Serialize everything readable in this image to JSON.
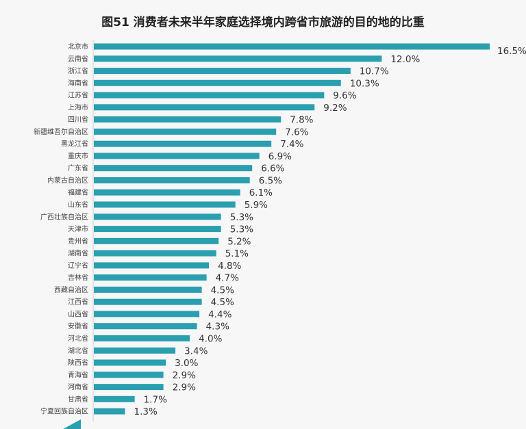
{
  "chart_data": {
    "type": "bar",
    "orientation": "horizontal",
    "title": "图51 消费者未来半年家庭选择境内跨省市旅游的目的地的比重",
    "bar_color": "#2a9fb0",
    "value_unit": "%",
    "categories": [
      "北京市",
      "云南省",
      "浙江省",
      "海南省",
      "江苏省",
      "上海市",
      "四川省",
      "新疆维吾尔自治区",
      "黑龙江省",
      "重庆市",
      "广东省",
      "内蒙古自治区",
      "福建省",
      "山东省",
      "广西壮族自治区",
      "天津市",
      "贵州省",
      "湖南省",
      "辽宁省",
      "吉林省",
      "西藏自治区",
      "江西省",
      "山西省",
      "安徽省",
      "河北省",
      "湖北省",
      "陕西省",
      "青海省",
      "河南省",
      "甘肃省",
      "宁夏回族自治区"
    ],
    "values": [
      16.5,
      12.0,
      10.7,
      10.3,
      9.6,
      9.2,
      7.8,
      7.6,
      7.4,
      6.9,
      6.6,
      6.5,
      6.1,
      5.9,
      5.3,
      5.3,
      5.2,
      5.1,
      4.8,
      4.7,
      4.5,
      4.5,
      4.4,
      4.3,
      4.0,
      3.4,
      3.0,
      2.9,
      2.9,
      1.7,
      1.3
    ],
    "labels": [
      "16.5%",
      "12.0%",
      "10.7%",
      "10.3%",
      "9.6%",
      "9.2%",
      "7.8%",
      "7.6%",
      "7.4%",
      "6.9%",
      "6.6%",
      "6.5%",
      "6.1%",
      "5.9%",
      "5.3%",
      "5.3%",
      "5.2%",
      "5.1%",
      "4.8%",
      "4.7%",
      "4.5%",
      "4.5%",
      "4.4%",
      "4.3%",
      "4.0%",
      "3.4%",
      "3.0%",
      "2.9%",
      "2.9%",
      "1.7%",
      "1.3%"
    ],
    "xlim": [
      0,
      16.5
    ]
  }
}
